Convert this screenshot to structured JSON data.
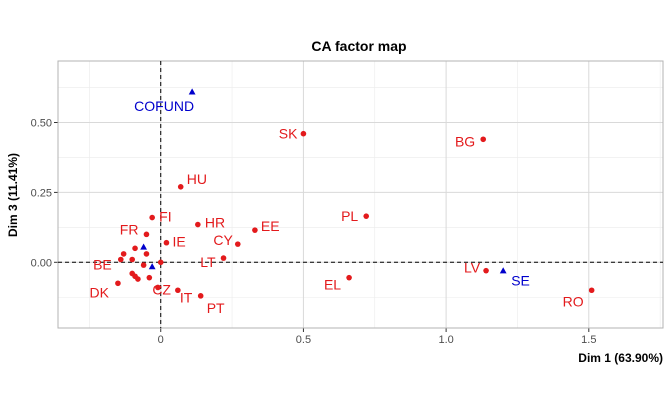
{
  "chart_data": {
    "type": "scatter",
    "title": "CA factor map",
    "xlabel": "Dim 1 (63.90%)",
    "ylabel": "Dim 3 (11.41%)",
    "xlim": [
      -0.36,
      1.76
    ],
    "ylim": [
      -0.235,
      0.72
    ],
    "xticks": [
      0,
      0.5,
      1,
      1.5
    ],
    "xtick_labels": [
      "0",
      "0.5",
      "1.0",
      "1.5"
    ],
    "yticks": [
      0,
      0.25,
      0.5
    ],
    "ytick_labels": [
      "0.00",
      "0.25",
      "0.50"
    ],
    "grid": true,
    "reference_lines": {
      "x": 0,
      "y": 0
    },
    "colors": {
      "rows": "#e31a1c",
      "cols": "#0000cc"
    },
    "row_points": [
      {
        "label": "SK",
        "x": 0.5,
        "y": 0.46
      },
      {
        "label": "BG",
        "x": 1.13,
        "y": 0.44
      },
      {
        "label": "HU",
        "x": 0.07,
        "y": 0.27
      },
      {
        "label": "FI",
        "x": -0.03,
        "y": 0.16
      },
      {
        "label": "PL",
        "x": 0.72,
        "y": 0.165
      },
      {
        "label": "HR",
        "x": 0.13,
        "y": 0.135
      },
      {
        "label": "EE",
        "x": 0.33,
        "y": 0.115
      },
      {
        "label": "FR",
        "x": -0.05,
        "y": 0.1
      },
      {
        "label": "CY",
        "x": 0.27,
        "y": 0.065
      },
      {
        "label": "IE",
        "x": 0.02,
        "y": 0.07
      },
      {
        "label": "LT",
        "x": 0.22,
        "y": 0.015
      },
      {
        "label": "BE",
        "x": -0.14,
        "y": 0.01
      },
      {
        "label": "LV",
        "x": 1.14,
        "y": -0.03
      },
      {
        "label": "EL",
        "x": 0.66,
        "y": -0.055
      },
      {
        "label": "CZ",
        "x": -0.04,
        "y": -0.055
      },
      {
        "label": "DK",
        "x": -0.15,
        "y": -0.075
      },
      {
        "label": "IT",
        "x": 0.06,
        "y": -0.1
      },
      {
        "label": "PT",
        "x": 0.14,
        "y": -0.12
      },
      {
        "label": "RO",
        "x": 1.51,
        "y": -0.1
      },
      {
        "label": "",
        "x": -0.13,
        "y": 0.03
      },
      {
        "label": "",
        "x": -0.09,
        "y": 0.05
      },
      {
        "label": "",
        "x": -0.05,
        "y": 0.03
      },
      {
        "label": "",
        "x": -0.1,
        "y": 0.01
      },
      {
        "label": "",
        "x": 0.0,
        "y": 0.0
      },
      {
        "label": "",
        "x": -0.06,
        "y": -0.01
      },
      {
        "label": "",
        "x": -0.1,
        "y": -0.04
      },
      {
        "label": "",
        "x": -0.08,
        "y": -0.06
      },
      {
        "label": "",
        "x": -0.09,
        "y": -0.05
      },
      {
        "label": "",
        "x": -0.01,
        "y": -0.09
      }
    ],
    "col_points": [
      {
        "label": "COFUND",
        "x": 0.11,
        "y": 0.61
      },
      {
        "label": "SE",
        "x": 1.2,
        "y": -0.03
      },
      {
        "label": "",
        "x": -0.06,
        "y": 0.055
      },
      {
        "label": "",
        "x": -0.03,
        "y": -0.015
      }
    ]
  }
}
